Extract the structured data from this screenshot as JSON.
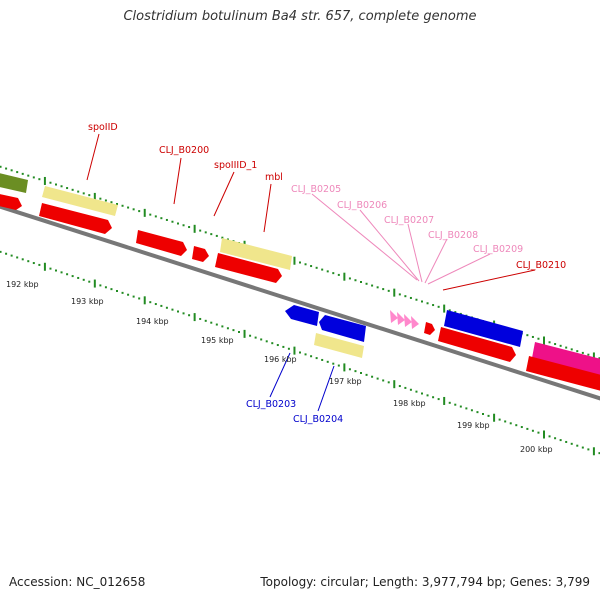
{
  "title": "Clostridium botulinum Ba4 str. 657, complete genome",
  "footer": {
    "accession": "Accession: NC_012658",
    "summary": "Topology: circular; Length: 3,977,794 bp; Genes: 3,799"
  },
  "colors": {
    "red": "#ee0000",
    "blue": "#0000dd",
    "pink": "#ff88cc",
    "magenta": "#ee1188",
    "khaki": "#f0e68c",
    "olive": "#6b8e23",
    "backbone": "#888888",
    "tick": "#228b22",
    "label_red": "#cc0000",
    "label_blue": "#0000cc",
    "label_pink": "#ee88bb"
  },
  "scale_labels": [
    "192 kbp",
    "193 kbp",
    "194 kbp",
    "195 kbp",
    "196 kbp",
    "197 kbp",
    "198 kbp",
    "199 kbp",
    "200 kbp"
  ],
  "labels": {
    "spoIID": "spoIID",
    "CLJ_B0200": "CLJ_B0200",
    "spoIIID_1": "spoIIID_1",
    "mbl": "mbl",
    "CLJ_B0205": "CLJ_B0205",
    "CLJ_B0206": "CLJ_B0206",
    "CLJ_B0207": "CLJ_B0207",
    "CLJ_B0208": "CLJ_B0208",
    "CLJ_B0209": "CLJ_B0209",
    "CLJ_B0210": "CLJ_B0210",
    "CLJ_B0203": "CLJ_B0203",
    "CLJ_B0204": "CLJ_B0204"
  }
}
